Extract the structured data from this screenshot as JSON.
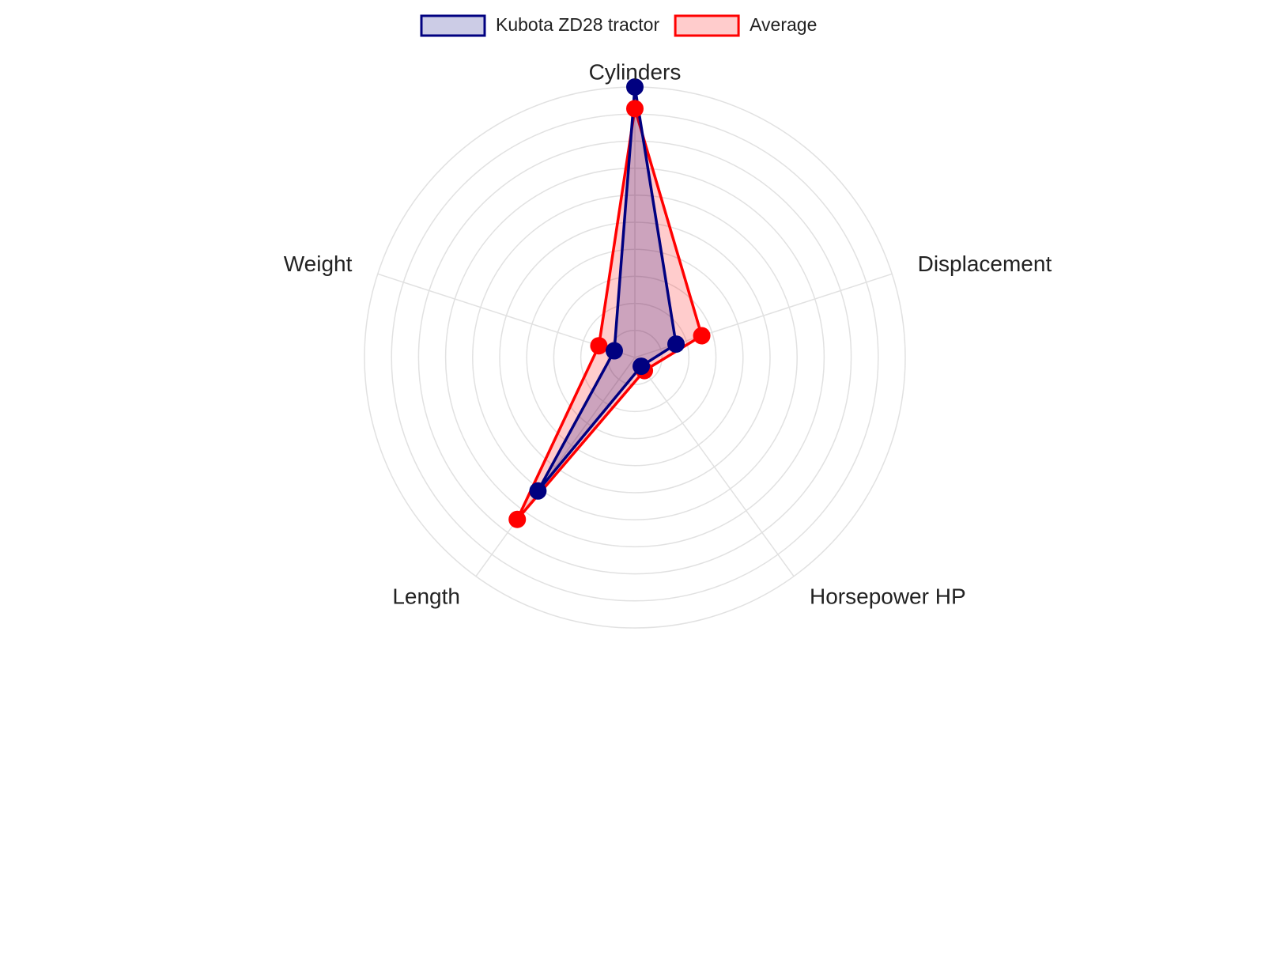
{
  "chart_data": {
    "type": "radar",
    "title": "",
    "axes": [
      "Cylinders",
      "Displacement",
      "Horsepower HP",
      "Length",
      "Weight"
    ],
    "rlim": [
      0,
      10
    ],
    "rings": 10,
    "grid": true,
    "legend_position": "top-center",
    "series": [
      {
        "name": "Kubota ZD28 tractor",
        "values": [
          10.0,
          1.6,
          0.4,
          6.1,
          0.8
        ],
        "line_color": "#000080",
        "fill_color": "#000080"
      },
      {
        "name": "Average",
        "values": [
          9.2,
          2.6,
          0.6,
          7.4,
          1.4
        ],
        "line_color": "#ff0000",
        "fill_color": "#ff0000"
      }
    ]
  }
}
